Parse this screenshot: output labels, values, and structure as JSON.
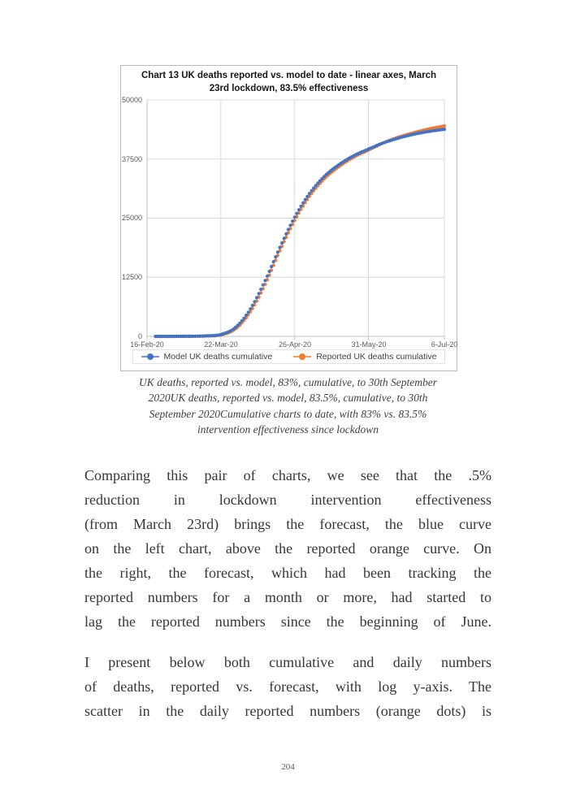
{
  "page": {
    "number": "204"
  },
  "chart": {
    "title_lines": [
      "Chart 13 UK deaths reported vs. model to date - linear axes, March",
      "23rd lockdown, 83.5% effectiveness"
    ],
    "y_ticks": [
      "50000",
      "37500",
      "25000",
      "12500",
      "0"
    ],
    "x_ticks": [
      "16-Feb-20",
      "22-Mar-20",
      "26-Apr-20",
      "31-May-20",
      "6-Jul-20"
    ],
    "legend": [
      "Model UK deaths cumulative",
      "Reported UK deaths cumulative"
    ]
  },
  "chart_data": {
    "type": "scatter",
    "title": "Chart 13 UK deaths reported vs. model to date - linear axes, March 23rd lockdown, 83.5% effectiveness",
    "xlabel": "",
    "ylabel": "",
    "ylim": [
      0,
      50000
    ],
    "y_tick_values": [
      0,
      12500,
      25000,
      37500,
      50000
    ],
    "x_tick_labels": [
      "16-Feb-20",
      "22-Mar-20",
      "26-Apr-20",
      "31-May-20",
      "6-Jul-20"
    ],
    "x_tick_days": [
      0,
      35,
      70,
      105,
      141
    ],
    "x_total_days": 141,
    "x_start_date": "16-Feb-20",
    "x_end_date": "6-Jul-20",
    "grid": true,
    "grid_color": "#d9d9d9",
    "axis_color": "#bfbfbf",
    "legend_position": "bottom",
    "marker": "circle",
    "series": [
      {
        "name": "Model UK deaths cumulative",
        "color": "#4472C4",
        "points": [
          [
            0,
            0
          ],
          [
            7,
            0
          ],
          [
            14,
            10
          ],
          [
            21,
            30
          ],
          [
            28,
            100
          ],
          [
            35,
            400
          ],
          [
            42,
            1900
          ],
          [
            49,
            5800
          ],
          [
            56,
            11800
          ],
          [
            63,
            18800
          ],
          [
            70,
            25200
          ],
          [
            77,
            30200
          ],
          [
            84,
            33800
          ],
          [
            91,
            36300
          ],
          [
            98,
            38200
          ],
          [
            105,
            39600
          ],
          [
            112,
            40900
          ],
          [
            119,
            41900
          ],
          [
            126,
            42700
          ],
          [
            133,
            43300
          ],
          [
            141,
            43800
          ]
        ]
      },
      {
        "name": "Reported UK deaths cumulative",
        "color": "#ED7D31",
        "points": [
          [
            0,
            0
          ],
          [
            7,
            0
          ],
          [
            14,
            5
          ],
          [
            21,
            20
          ],
          [
            28,
            80
          ],
          [
            35,
            330
          ],
          [
            42,
            1600
          ],
          [
            49,
            5200
          ],
          [
            56,
            11000
          ],
          [
            63,
            18100
          ],
          [
            70,
            24500
          ],
          [
            77,
            29600
          ],
          [
            84,
            33300
          ],
          [
            91,
            35900
          ],
          [
            98,
            37900
          ],
          [
            105,
            39400
          ],
          [
            112,
            40900
          ],
          [
            119,
            42100
          ],
          [
            126,
            43000
          ],
          [
            133,
            43800
          ],
          [
            141,
            44500
          ]
        ]
      }
    ]
  },
  "caption": {
    "lines": [
      "UK deaths, reported vs. model, 83%, cumulative, to 30th September",
      "2020UK deaths, reported vs. model, 83.5%, cumulative, to 30th",
      "September 2020Cumulative charts to date, with 83% vs. 83.5%",
      "intervention effectiveness since lockdown"
    ]
  },
  "body": {
    "p1_lines": [
      "Comparing this pair of charts, we see that the .5%",
      "reduction in lockdown intervention effectiveness",
      "(from March 23rd) brings the forecast, the blue curve",
      "on the left chart, above the reported orange curve. On",
      "the right, the forecast, which had been tracking the",
      "reported numbers for a month or more, had started to",
      "lag the reported numbers since the beginning of June."
    ],
    "p2_lines": [
      "I present below both cumulative and daily numbers",
      "of deaths, reported vs. forecast, with log y-axis. The",
      "scatter in the daily reported numbers (orange dots) is"
    ]
  }
}
